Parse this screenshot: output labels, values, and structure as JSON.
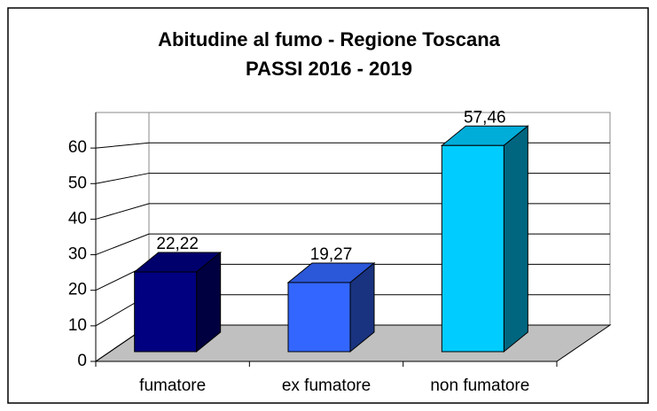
{
  "chart_data": {
    "type": "bar3d",
    "title": "Abitudine al fumo - Regione Toscana",
    "subtitle": "PASSI 2016 - 2019",
    "categories": [
      "fumatore",
      "ex fumatore",
      "non fumatore"
    ],
    "values": [
      22.22,
      19.27,
      57.46
    ],
    "value_labels": [
      "22,22",
      "19,27",
      "57,46"
    ],
    "colors": [
      "#000080",
      "#3366ff",
      "#00ccff"
    ],
    "ylim": [
      0,
      70
    ],
    "yticks": [
      0,
      10,
      20,
      30,
      40,
      50,
      60
    ],
    "grid": true
  }
}
